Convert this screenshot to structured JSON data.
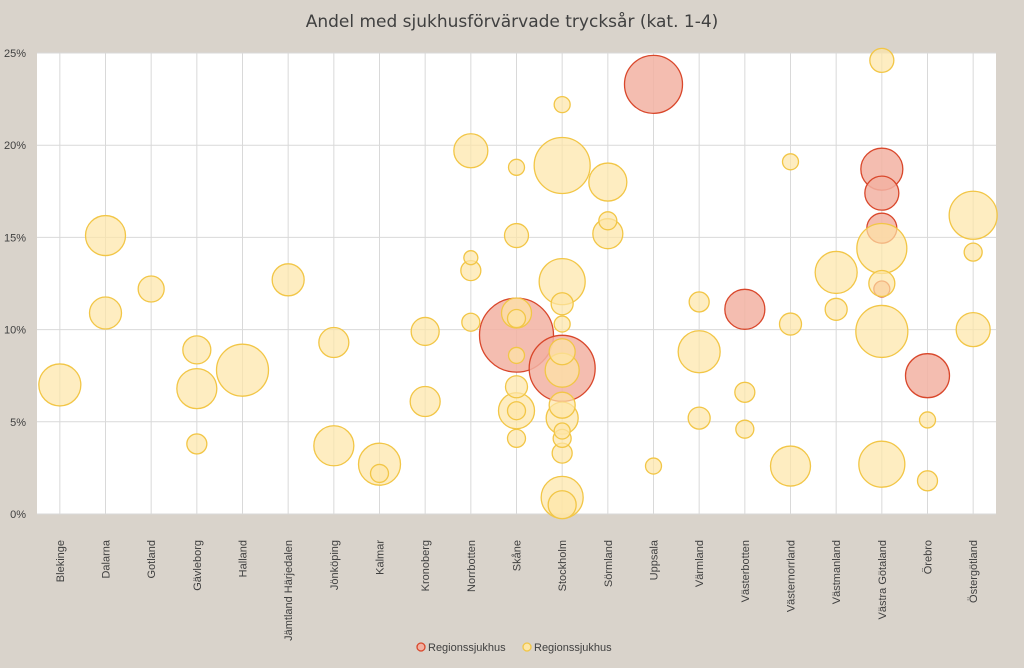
{
  "chart_data": {
    "type": "scatter",
    "title": "Andel med sjukhusförvärvade trycksår (kat. 1-4)",
    "xlabel": "",
    "ylabel": "",
    "y_axis_format": "percent",
    "ylim": [
      0,
      25
    ],
    "yticks": [
      0,
      5,
      10,
      15,
      20,
      25
    ],
    "ytick_labels": [
      "0%",
      "5%",
      "10%",
      "15%",
      "20%",
      "25%"
    ],
    "grid": true,
    "legend_position": "bottom",
    "categories": [
      "Blekinge",
      "Dalarna",
      "Gotland",
      "Gävleborg",
      "Halland",
      "Jämtland Härjedalen",
      "Jönköping",
      "Kalmar",
      "Kronoberg",
      "Norrbotten",
      "Skåne",
      "Stockholm",
      "Sörmland",
      "Uppsala",
      "Värmland",
      "Västerbotten",
      "Västernorrland",
      "Västmanland",
      "Västra Götaland",
      "Örebro",
      "Östergötland"
    ],
    "series": [
      {
        "name": "Regionssjukhus",
        "fill": "#f2b1a2",
        "stroke": "#d9472b",
        "points": [
          {
            "x": "Skåne",
            "y": 9.7,
            "size": 37
          },
          {
            "x": "Stockholm",
            "y": 7.9,
            "size": 33
          },
          {
            "x": "Uppsala",
            "y": 23.3,
            "size": 29
          },
          {
            "x": "Västerbotten",
            "y": 11.1,
            "size": 20
          },
          {
            "x": "Västra Götaland",
            "y": 18.7,
            "size": 21
          },
          {
            "x": "Västra Götaland",
            "y": 17.4,
            "size": 17
          },
          {
            "x": "Västra Götaland",
            "y": 15.5,
            "size": 15
          },
          {
            "x": "Västra Götaland",
            "y": 12.2,
            "size": 8
          },
          {
            "x": "Örebro",
            "y": 7.5,
            "size": 22
          }
        ]
      },
      {
        "name": "Regionssjukhus",
        "fill": "#fde6a6",
        "stroke": "#f2c646",
        "points": [
          {
            "x": "Blekinge",
            "y": 7.0,
            "size": 21
          },
          {
            "x": "Dalarna",
            "y": 15.1,
            "size": 20
          },
          {
            "x": "Dalarna",
            "y": 10.9,
            "size": 16
          },
          {
            "x": "Gotland",
            "y": 12.2,
            "size": 13
          },
          {
            "x": "Gävleborg",
            "y": 8.9,
            "size": 14
          },
          {
            "x": "Gävleborg",
            "y": 6.8,
            "size": 20
          },
          {
            "x": "Gävleborg",
            "y": 3.8,
            "size": 10
          },
          {
            "x": "Halland",
            "y": 7.8,
            "size": 26
          },
          {
            "x": "Jämtland Härjedalen",
            "y": 12.7,
            "size": 16
          },
          {
            "x": "Jönköping",
            "y": 9.3,
            "size": 15
          },
          {
            "x": "Jönköping",
            "y": 3.7,
            "size": 20
          },
          {
            "x": "Kalmar",
            "y": 2.7,
            "size": 21
          },
          {
            "x": "Kalmar",
            "y": 2.2,
            "size": 9
          },
          {
            "x": "Kronoberg",
            "y": 9.9,
            "size": 14
          },
          {
            "x": "Kronoberg",
            "y": 6.1,
            "size": 15
          },
          {
            "x": "Norrbotten",
            "y": 19.7,
            "size": 17
          },
          {
            "x": "Norrbotten",
            "y": 13.9,
            "size": 7
          },
          {
            "x": "Norrbotten",
            "y": 13.2,
            "size": 10
          },
          {
            "x": "Norrbotten",
            "y": 10.4,
            "size": 9
          },
          {
            "x": "Skåne",
            "y": 18.8,
            "size": 8
          },
          {
            "x": "Skåne",
            "y": 15.1,
            "size": 12
          },
          {
            "x": "Skåne",
            "y": 10.9,
            "size": 15
          },
          {
            "x": "Skåne",
            "y": 10.6,
            "size": 9
          },
          {
            "x": "Skåne",
            "y": 8.6,
            "size": 8
          },
          {
            "x": "Skåne",
            "y": 6.9,
            "size": 11
          },
          {
            "x": "Skåne",
            "y": 5.6,
            "size": 18
          },
          {
            "x": "Skåne",
            "y": 5.6,
            "size": 9
          },
          {
            "x": "Skåne",
            "y": 4.1,
            "size": 9
          },
          {
            "x": "Stockholm",
            "y": 22.2,
            "size": 8
          },
          {
            "x": "Stockholm",
            "y": 18.9,
            "size": 28
          },
          {
            "x": "Stockholm",
            "y": 12.6,
            "size": 23
          },
          {
            "x": "Stockholm",
            "y": 11.4,
            "size": 11
          },
          {
            "x": "Stockholm",
            "y": 10.3,
            "size": 8
          },
          {
            "x": "Stockholm",
            "y": 8.8,
            "size": 13
          },
          {
            "x": "Stockholm",
            "y": 7.8,
            "size": 17
          },
          {
            "x": "Stockholm",
            "y": 5.9,
            "size": 13
          },
          {
            "x": "Stockholm",
            "y": 5.2,
            "size": 16
          },
          {
            "x": "Stockholm",
            "y": 4.5,
            "size": 8
          },
          {
            "x": "Stockholm",
            "y": 4.1,
            "size": 9
          },
          {
            "x": "Stockholm",
            "y": 3.3,
            "size": 10
          },
          {
            "x": "Stockholm",
            "y": 0.9,
            "size": 21
          },
          {
            "x": "Stockholm",
            "y": 0.5,
            "size": 14
          },
          {
            "x": "Sörmland",
            "y": 18.0,
            "size": 19
          },
          {
            "x": "Sörmland",
            "y": 15.9,
            "size": 9
          },
          {
            "x": "Sörmland",
            "y": 15.2,
            "size": 15
          },
          {
            "x": "Uppsala",
            "y": 2.6,
            "size": 8
          },
          {
            "x": "Värmland",
            "y": 11.5,
            "size": 10
          },
          {
            "x": "Värmland",
            "y": 8.8,
            "size": 21
          },
          {
            "x": "Värmland",
            "y": 5.2,
            "size": 11
          },
          {
            "x": "Västerbotten",
            "y": 6.6,
            "size": 10
          },
          {
            "x": "Västerbotten",
            "y": 4.6,
            "size": 9
          },
          {
            "x": "Västernorrland",
            "y": 19.1,
            "size": 8
          },
          {
            "x": "Västernorrland",
            "y": 10.3,
            "size": 11
          },
          {
            "x": "Västernorrland",
            "y": 2.6,
            "size": 20
          },
          {
            "x": "Västmanland",
            "y": 13.1,
            "size": 21
          },
          {
            "x": "Västmanland",
            "y": 11.1,
            "size": 11
          },
          {
            "x": "Västra Götaland",
            "y": 24.6,
            "size": 12
          },
          {
            "x": "Västra Götaland",
            "y": 14.4,
            "size": 25
          },
          {
            "x": "Västra Götaland",
            "y": 12.5,
            "size": 13
          },
          {
            "x": "Västra Götaland",
            "y": 9.9,
            "size": 26
          },
          {
            "x": "Västra Götaland",
            "y": 2.7,
            "size": 23
          },
          {
            "x": "Örebro",
            "y": 5.1,
            "size": 8
          },
          {
            "x": "Örebro",
            "y": 1.8,
            "size": 10
          },
          {
            "x": "Östergötland",
            "y": 16.2,
            "size": 24
          },
          {
            "x": "Östergötland",
            "y": 14.2,
            "size": 9
          },
          {
            "x": "Östergötland",
            "y": 10.0,
            "size": 17
          }
        ]
      }
    ]
  }
}
